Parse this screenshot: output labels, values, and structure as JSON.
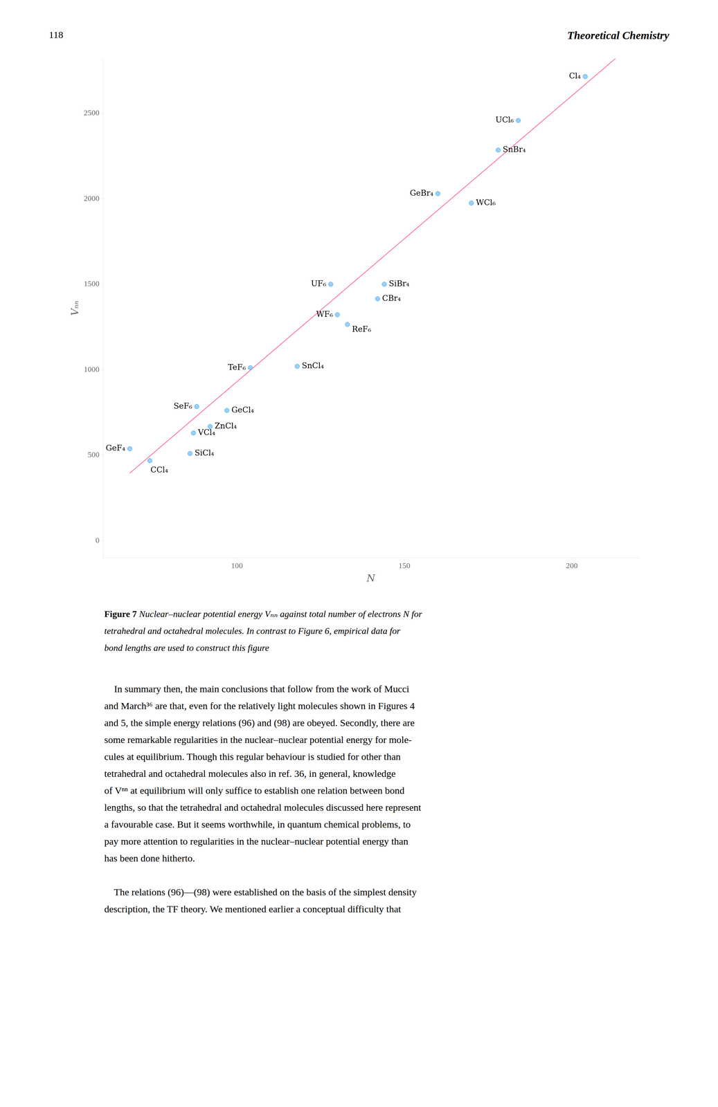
{
  "page_number": "118",
  "header_title": "Theoretical Chemistry",
  "chart_data": {
    "type": "scatter",
    "xlabel": "N",
    "ylabel": "Vₙₙ",
    "xlim": [
      60,
      220
    ],
    "ylim": [
      -100,
      2820
    ],
    "xticks": [
      100,
      150,
      200
    ],
    "yticks": [
      0,
      500,
      1000,
      1500,
      2000,
      2500
    ],
    "grid": false,
    "series": [
      {
        "x": [
          74,
          86,
          68,
          87,
          92,
          97,
          88,
          104,
          118,
          133,
          130,
          142,
          144,
          128,
          170,
          160,
          178,
          184,
          204
        ],
        "values": [
          468,
          510,
          538,
          630,
          668,
          762,
          785,
          1012,
          1020,
          1265,
          1322,
          1415,
          1500,
          1500,
          1975,
          2030,
          2285,
          2458,
          2715
        ],
        "labels": [
          "CCl₄",
          "SiCl₄",
          "GeF₄",
          "VCl₄",
          "ZnCl₄",
          "GeCl₄",
          "SeF₆",
          "TeF₆",
          "SnCl₄",
          "ReF₆",
          "WF₆",
          "CBr₄",
          "SiBr₄",
          "UF₆",
          "WCl₆",
          "GeBr₄",
          "SnBr₄",
          "UCl₆",
          "Cl₄"
        ],
        "marker": "circle"
      },
      {
        "type": "line",
        "x": [
          68,
          213
        ],
        "values": [
          395,
          2820
        ],
        "line_style": "solid"
      }
    ]
  },
  "caption": {
    "bold": "Figure 7",
    "lines": [
      "Nuclear–nuclear potential energy Vₙₙ against total number of electrons N for",
      "tetrahedral and octahedral molecules. In contrast to Figure 6, empirical data for",
      "bond lengths are used to construct this figure"
    ]
  },
  "body": [
    [
      "    In summary then, the main conclusions that follow from the work of Mucci",
      "and March³⁶ are that, even for the relatively light molecules shown in Figures 4",
      "and 5, the simple energy relations (96) and (98) are obeyed. Secondly, there are",
      "some remarkable regularities in the nuclear–nuclear potential energy for mole-",
      "cules at equilibrium. Though this regular behaviour is studied for other than",
      "tetrahedral and octahedral molecules also in ref. 36, in general, knowledge",
      "of Vⁿⁿ at equilibrium will only suffice to establish one relation between bond",
      "lengths, so that the tetrahedral and octahedral molecules discussed here represent",
      "a favourable case. But it seems worthwhile, in quantum chemical problems, to",
      "pay more attention to regularities in the nuclear–nuclear potential energy than",
      "has been done hitherto."
    ],
    [
      "    The relations (96)—(98) were established on the basis of the simplest density",
      "description, the TF theory. We mentioned earlier a conceptual difficulty that"
    ]
  ]
}
